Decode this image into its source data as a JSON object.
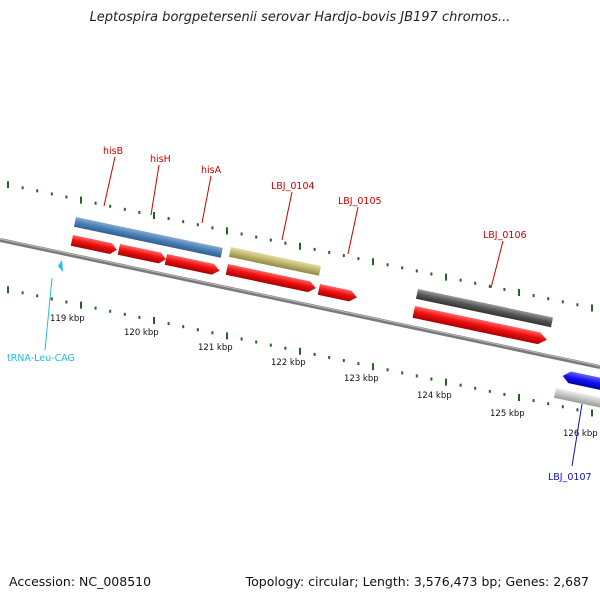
{
  "title": "Leptospira borgpetersenii serovar Hardjo-bovis JB197 chromos...",
  "footer": {
    "accession": "Accession: NC_008510",
    "summary": "Topology: circular; Length: 3,576,473 bp; Genes: 2,687"
  },
  "colors": {
    "cds_arrow": "#ee1111",
    "gene_label": "#cc0000",
    "trna_label": "#22bbdd",
    "reverse_label": "#1111bb",
    "ticks": "#226622",
    "backbone": "#888888"
  },
  "ruler": {
    "labels": [
      "119 kbp",
      "120 kbp",
      "121 kbp",
      "122 kbp",
      "123 kbp",
      "124 kbp",
      "125 kbp",
      "126 kbp"
    ]
  },
  "features": {
    "hisB": "hisB",
    "hisH": "hisH",
    "hisA": "hisA",
    "LBJ_0104": "LBJ_0104",
    "LBJ_0105": "LBJ_0105",
    "LBJ_0106": "LBJ_0106",
    "LBJ_0107": "LBJ_0107",
    "tRNA": "tRNA-Leu-CAG"
  }
}
